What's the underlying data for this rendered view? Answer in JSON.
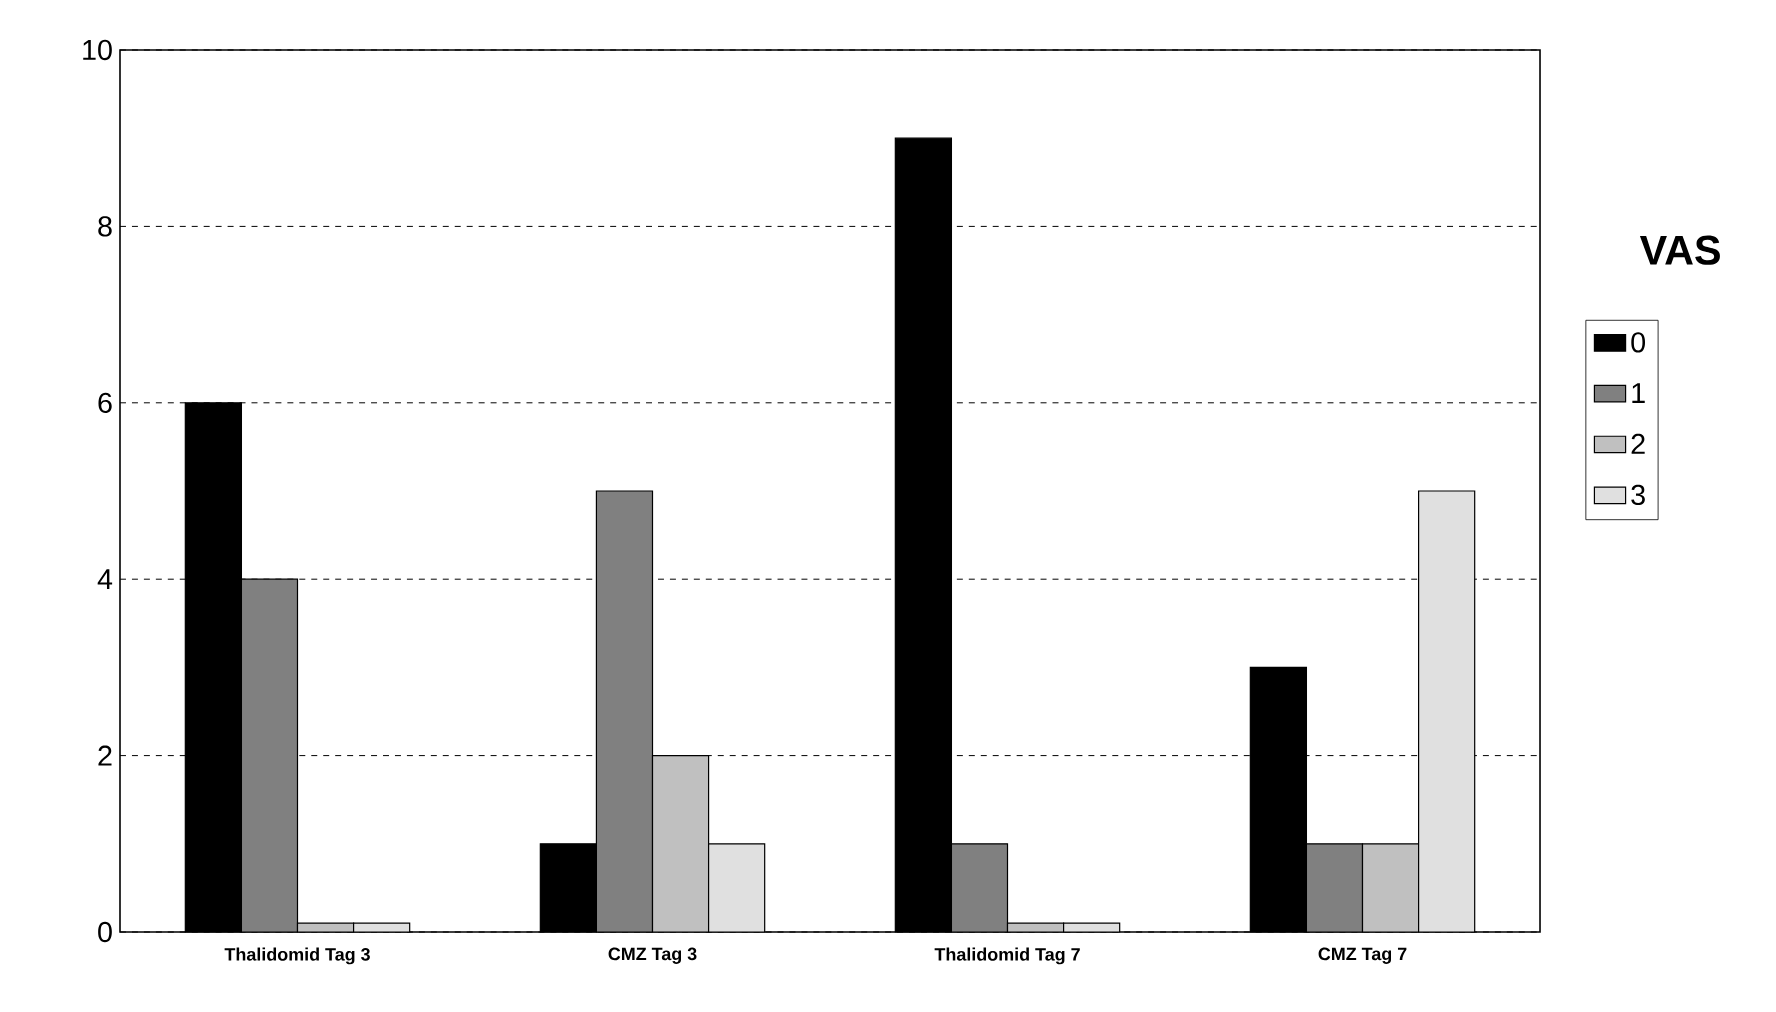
{
  "chart_data": {
    "type": "bar",
    "legend_title": "VAS",
    "categories": [
      "Thalidomid Tag 3",
      "CMZ Tag 3",
      "Thalidomid Tag 7",
      "CMZ Tag 7"
    ],
    "series": [
      {
        "name": "0",
        "color": "#000000",
        "values": [
          6,
          1,
          9,
          3
        ]
      },
      {
        "name": "1",
        "color": "#808080",
        "values": [
          4,
          5,
          1,
          1
        ]
      },
      {
        "name": "2",
        "color": "#c0c0c0",
        "values": [
          0.1,
          2,
          0.1,
          1
        ]
      },
      {
        "name": "3",
        "color": "#e0e0e0",
        "values": [
          0.1,
          1,
          0.1,
          5
        ]
      }
    ],
    "ylim": [
      0,
      10
    ],
    "yticks": [
      0,
      2,
      4,
      6,
      8,
      10
    ],
    "grid": "y",
    "legend": "right"
  }
}
